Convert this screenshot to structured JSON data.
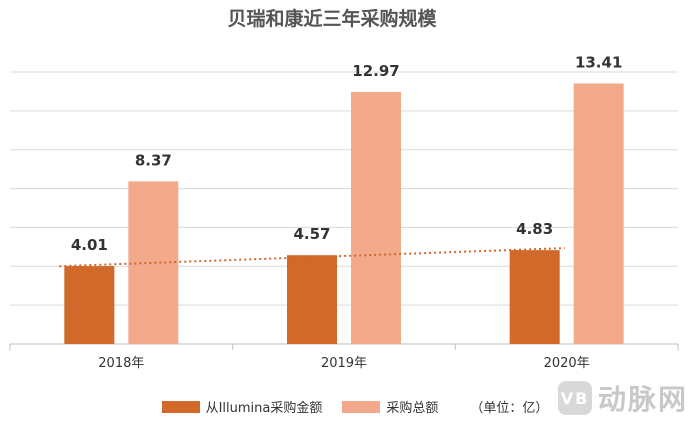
{
  "chart_data": {
    "type": "bar",
    "title": "贝瑞和康近三年采购规模",
    "categories": [
      "2018年",
      "2019年",
      "2020年"
    ],
    "series": [
      {
        "name": "从Illumina采购金额",
        "values": [
          4.01,
          4.57,
          4.83
        ],
        "color": "#d0692a"
      },
      {
        "name": "采购总额",
        "values": [
          8.37,
          12.97,
          13.41
        ],
        "color": "#f2a98c"
      }
    ],
    "unit_note": "（单位：亿）",
    "ylim": [
      0,
      14
    ],
    "gridlines": true,
    "trendline": {
      "series": "从Illumina采购金额",
      "style": "dotted",
      "color": "#d0692a"
    },
    "legend_position": "bottom"
  },
  "watermark": {
    "logo_text": "VB",
    "text": "动脉网"
  }
}
